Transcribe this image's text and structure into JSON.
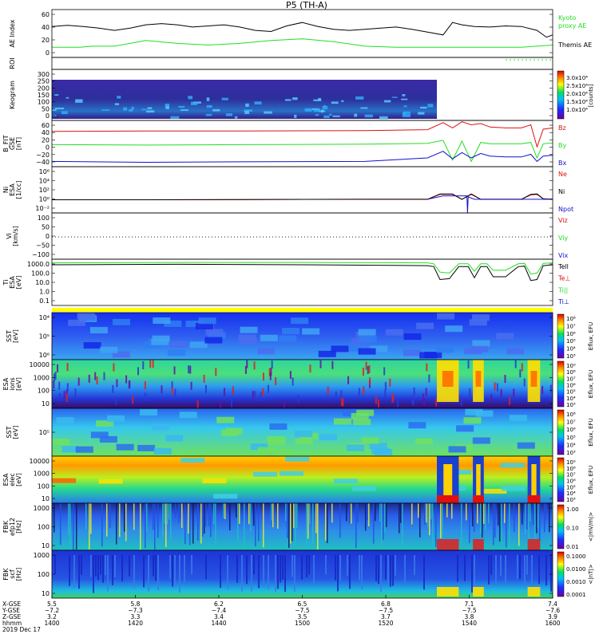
{
  "title": "P5 (TH-A)",
  "colors": {
    "black": "#000000",
    "green": "#22dd22",
    "red": "#dd1111",
    "blue": "#1111cc",
    "navy": "#1a2a9a",
    "yellow": "#ffff00"
  },
  "chart_data": [
    {
      "type": "line",
      "id": "ae",
      "ylabel": "AE Index",
      "yticks": [
        "60",
        "40",
        "20",
        "0"
      ],
      "ylim": [
        0,
        85
      ],
      "legend": [
        "Kyoto",
        "proxy AE",
        "Themis AE"
      ],
      "series": [
        {
          "name": "Kyoto proxy AE",
          "color": "#22dd22",
          "x": [
            1400,
            1409,
            1413,
            1420,
            1430,
            1440,
            1450,
            1460,
            1470,
            1480,
            1490,
            1500,
            1510,
            1520,
            1530,
            1540,
            1550,
            1560
          ],
          "values": [
            18,
            18,
            20,
            20,
            30,
            25,
            22,
            25,
            30,
            33,
            28,
            20,
            18,
            18,
            18,
            18,
            18,
            22
          ]
        },
        {
          "name": "Themis AE",
          "color": "#000000",
          "x": [
            1400,
            1405,
            1410,
            1415,
            1420,
            1425,
            1430,
            1435,
            1440,
            1445,
            1450,
            1455,
            1460,
            1465,
            1470,
            1475,
            1480,
            1485,
            1490,
            1495,
            1500,
            1505,
            1510,
            1515,
            1520,
            1525,
            1528,
            1531,
            1535,
            1540,
            1545,
            1550,
            1555,
            1558,
            1560
          ],
          "values": [
            55,
            57,
            55,
            52,
            48,
            52,
            58,
            60,
            58,
            54,
            56,
            58,
            54,
            48,
            46,
            56,
            62,
            55,
            50,
            48,
            50,
            52,
            54,
            50,
            45,
            40,
            62,
            58,
            55,
            54,
            56,
            55,
            48,
            36,
            40
          ]
        }
      ]
    },
    {
      "type": "line",
      "id": "roi",
      "ylabel": "ROI",
      "yticks": [],
      "note": "dotted green marks near right end"
    },
    {
      "type": "heatmap",
      "id": "keogram",
      "ylabel": "Keogram",
      "yticks": [
        "300",
        "250",
        "200",
        "150",
        "100",
        "50",
        "0"
      ],
      "ylim": [
        0,
        300
      ],
      "x_range": [
        1400,
        1523
      ],
      "colorbar": {
        "ticks": [
          "3.0x10⁴",
          "2.5x10⁴",
          "2.0x10⁴",
          "1.5x10⁴",
          "1.0x10⁴"
        ],
        "label": "[counts]"
      }
    },
    {
      "type": "line",
      "id": "bfield",
      "ylabel": "B_FIT",
      "ylabel2": "GSE",
      "ylabel3": "[nT]",
      "yticks": [
        "60",
        "40",
        "20",
        "0",
        "−20",
        "−40"
      ],
      "ylim": [
        -40,
        65
      ],
      "legend": [
        "Bz",
        "By",
        "Bx"
      ],
      "series": [
        {
          "name": "Bz",
          "color": "#dd1111",
          "x": [
            1400,
            1430,
            1460,
            1500,
            1520,
            1525,
            1528,
            1531,
            1534,
            1537,
            1540,
            1545,
            1550,
            1553,
            1555,
            1557,
            1560
          ],
          "values": [
            40,
            41,
            41,
            42,
            44,
            60,
            48,
            62,
            55,
            58,
            50,
            48,
            48,
            55,
            5,
            45,
            48
          ]
        },
        {
          "name": "By",
          "color": "#22dd22",
          "x": [
            1400,
            1430,
            1460,
            1500,
            1520,
            1525,
            1528,
            1531,
            1534,
            1537,
            1540,
            1545,
            1550,
            1553,
            1555,
            1557,
            1560
          ],
          "values": [
            10,
            9,
            10,
            11,
            13,
            20,
            -25,
            18,
            -28,
            15,
            12,
            12,
            12,
            15,
            -20,
            12,
            14
          ]
        },
        {
          "name": "Bx",
          "color": "#1111cc",
          "x": [
            1400,
            1430,
            1460,
            1500,
            1520,
            1525,
            1528,
            1531,
            1534,
            1537,
            1540,
            1545,
            1550,
            1553,
            1555,
            1557,
            1560
          ],
          "values": [
            -28,
            -30,
            -29,
            -28,
            -20,
            -5,
            -22,
            -8,
            -20,
            -10,
            -16,
            -18,
            -18,
            -12,
            -28,
            -16,
            -14
          ]
        }
      ]
    },
    {
      "type": "line",
      "id": "density",
      "ylabel": "Ni",
      "ylabel2": "ESA",
      "ylabel3": "[1/cc]",
      "yticks": [
        "10⁶",
        "10⁴",
        "10²",
        "10⁰",
        "10⁻²"
      ],
      "ylim_log": [
        -2.5,
        7
      ],
      "legend": [
        "Ne",
        "Ni",
        "Npot"
      ],
      "series": [
        {
          "name": "Ne",
          "color": "#dd1111",
          "x": [
            1400,
            1430,
            1460,
            1500,
            1520,
            1524,
            1528,
            1531,
            1534,
            1537,
            1540,
            1550,
            1553,
            1555,
            1557,
            1560
          ],
          "values": [
            0.2,
            0.2,
            0.25,
            0.3,
            0.3,
            1.3,
            1.3,
            0.3,
            1.3,
            0.3,
            0.3,
            0.3,
            1.2,
            1.3,
            0.4,
            0.3
          ]
        },
        {
          "name": "Ni",
          "color": "#000000",
          "x": [
            1400,
            1430,
            1460,
            1500,
            1520,
            1524,
            1528,
            1531,
            1534,
            1537,
            1540,
            1550,
            1553,
            1555,
            1557,
            1560
          ],
          "values": [
            0.2,
            0.2,
            0.25,
            0.3,
            0.3,
            1.4,
            1.4,
            0.3,
            1.4,
            0.3,
            0.3,
            0.3,
            1.3,
            1.4,
            0.4,
            0.3
          ]
        },
        {
          "name": "Npot",
          "color": "#1111cc",
          "x": [
            1520,
            1525,
            1530,
            1532.6,
            1532.8,
            1533,
            1535,
            1540,
            1550,
            1560
          ],
          "values": [
            0.3,
            1.0,
            1.0,
            1.0,
            -2.5,
            0.8,
            0.3,
            0.3,
            0.3,
            0.3
          ]
        }
      ]
    },
    {
      "type": "line",
      "id": "velocity",
      "ylabel": "Vi",
      "ylabel3": "[km/s]",
      "yticks": [
        "100",
        "50",
        "0",
        "−50",
        "−100"
      ],
      "ylim": [
        -130,
        140
      ],
      "legend": [
        "Viz",
        "Viy",
        "Vix"
      ],
      "series": []
    },
    {
      "type": "line",
      "id": "temperature",
      "ylabel": "Ti",
      "ylabel2": "ESA",
      "ylabel3": "[eV]",
      "yticks": [
        "1000.0",
        "100.0",
        "10.0",
        "1.0",
        "0.1"
      ],
      "ylim_log": [
        -1.2,
        3.8
      ],
      "legend": [
        "Tell",
        "Te⊥",
        "Ti||",
        "Ti⊥"
      ],
      "series": [
        {
          "name": "Ti",
          "color": "#22dd22",
          "x": [
            1400,
            1440,
            1480,
            1520,
            1522,
            1524,
            1527,
            1530,
            1533,
            1535,
            1537,
            1539,
            1541,
            1545,
            1549,
            1551,
            1553,
            1555,
            1557,
            1560
          ],
          "values": [
            3.4,
            3.45,
            3.45,
            3.4,
            3.3,
            2.4,
            2.3,
            3.3,
            3.3,
            2.5,
            3.3,
            3.3,
            2.6,
            2.6,
            3.3,
            3.35,
            2.2,
            2.3,
            3.35,
            3.4
          ]
        },
        {
          "name": "Te",
          "color": "#000000",
          "x": [
            1400,
            1440,
            1480,
            1520,
            1522,
            1524,
            1527,
            1530,
            1533,
            1535,
            1537,
            1539,
            1541,
            1545,
            1549,
            1551,
            1553,
            1555,
            1557,
            1560
          ],
          "values": [
            3.2,
            3.25,
            3.2,
            3.1,
            3.0,
            1.6,
            1.7,
            3.0,
            3.0,
            1.8,
            3.0,
            3.0,
            1.9,
            1.9,
            3.0,
            3.05,
            1.5,
            1.6,
            3.1,
            3.2
          ]
        }
      ]
    },
    {
      "type": "heatmap",
      "id": "sst_ion",
      "ylabel": "SST",
      "ylabel3": "[eV]",
      "yticks": [
        "10⁴",
        "10⁵",
        "10⁶"
      ],
      "colorbar": {
        "ticks": [
          "10⁸",
          "10⁷",
          "10⁶",
          "10⁵",
          "10⁴",
          "10³"
        ],
        "label": "Eflux, EFU"
      }
    },
    {
      "type": "heatmap",
      "id": "esa_ion",
      "ylabel": "ESA",
      "ylabel2": "ions",
      "ylabel3": "[eV]",
      "yticks": [
        "10000",
        "1000",
        "100",
        "10"
      ],
      "colorbar": {
        "ticks": [
          "10⁹",
          "10⁸",
          "10⁷",
          "10⁶",
          "10⁵",
          "10⁴",
          "10³"
        ],
        "label": "Eflux, EFU"
      }
    },
    {
      "type": "heatmap",
      "id": "sst_elec",
      "ylabel": "SST",
      "ylabel3": "[eV]",
      "yticks": [
        "10⁵"
      ],
      "colorbar": {
        "ticks": [
          "10⁸",
          "10⁷",
          "10⁶",
          "10⁵",
          "10⁴",
          "10³"
        ],
        "label": "Eflux, EFU"
      }
    },
    {
      "type": "heatmap",
      "id": "esa_elec",
      "ylabel": "ESA",
      "ylabel2": "elec",
      "ylabel3": "[eV]",
      "yticks": [
        "10000",
        "1000",
        "100",
        "10"
      ],
      "colorbar": {
        "ticks": [
          "10⁹",
          "10⁸",
          "10⁷",
          "10⁶",
          "10⁵",
          "10⁴",
          "10³"
        ],
        "label": "Eflux, EFU"
      }
    },
    {
      "type": "heatmap",
      "id": "fbk_e",
      "ylabel": "FBK",
      "ylabel2": "efp12",
      "ylabel3": "[Hz]",
      "yticks": [
        "1000",
        "100",
        "10"
      ],
      "colorbar": {
        "ticks": [
          "1.00",
          "0.10",
          "0.01"
        ],
        "label": "<|mV/m|>"
      }
    },
    {
      "type": "heatmap",
      "id": "fbk_b",
      "ylabel": "FBK",
      "ylabel2": "scf",
      "ylabel3": "[Hz]",
      "yticks": [
        "1000",
        "100",
        "10"
      ],
      "colorbar": {
        "ticks": [
          "0.1000",
          "0.0100",
          "0.0010",
          "0.0001"
        ],
        "label": "<|nT|>"
      }
    }
  ],
  "axis": {
    "row_labels": [
      "X-GSE",
      "Y-GSE",
      "Z-GSE",
      "hhmm",
      "2019 Dec 17"
    ],
    "ticks": [
      {
        "rows": [
          "5.5",
          "−7.2",
          "3.2",
          "1400"
        ]
      },
      {
        "rows": [
          "5.8",
          "−7.3",
          "3.3",
          "1420"
        ]
      },
      {
        "rows": [
          "6.2",
          "−7.4",
          "3.4",
          "1440"
        ]
      },
      {
        "rows": [
          "6.5",
          "−7.5",
          "3.5",
          "1500"
        ]
      },
      {
        "rows": [
          "6.8",
          "−7.5",
          "3.7",
          "1520"
        ]
      },
      {
        "rows": [
          "7.1",
          "−7.5",
          "3.8",
          "1540"
        ]
      },
      {
        "rows": [
          "7.4",
          "−7.6",
          "3.9",
          "1600"
        ]
      }
    ]
  }
}
